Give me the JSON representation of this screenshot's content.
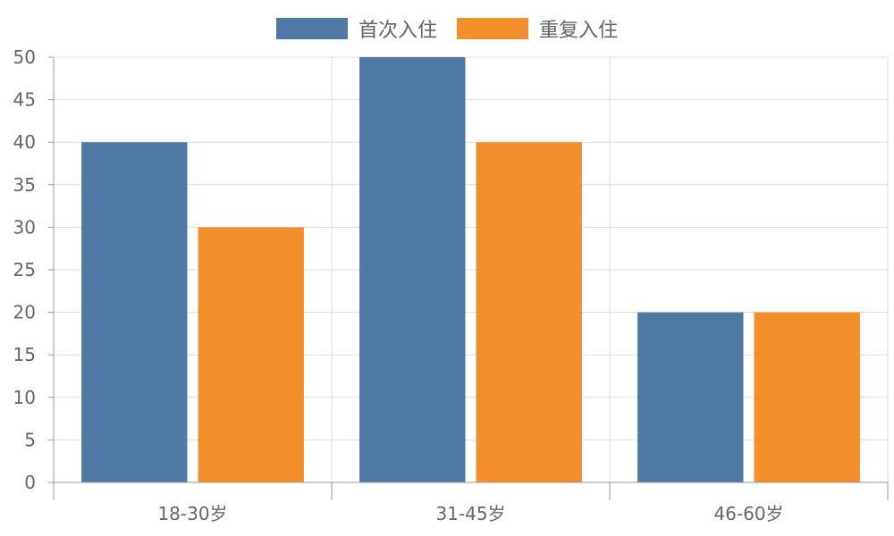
{
  "chart_data": {
    "type": "bar",
    "categories": [
      "18-30岁",
      "31-45岁",
      "46-60岁"
    ],
    "series": [
      {
        "name": "首次入住",
        "values": [
          40,
          50,
          20
        ],
        "color": "#4e79a7"
      },
      {
        "name": "重复入住",
        "values": [
          30,
          40,
          20
        ],
        "color": "#f28e2b"
      }
    ],
    "ylim": [
      0,
      50
    ],
    "y_ticks": [
      0,
      5,
      10,
      15,
      20,
      25,
      30,
      35,
      40,
      45,
      50
    ],
    "title": "",
    "xlabel": "",
    "ylabel": "",
    "grid": true,
    "legend_position": "top-center"
  }
}
